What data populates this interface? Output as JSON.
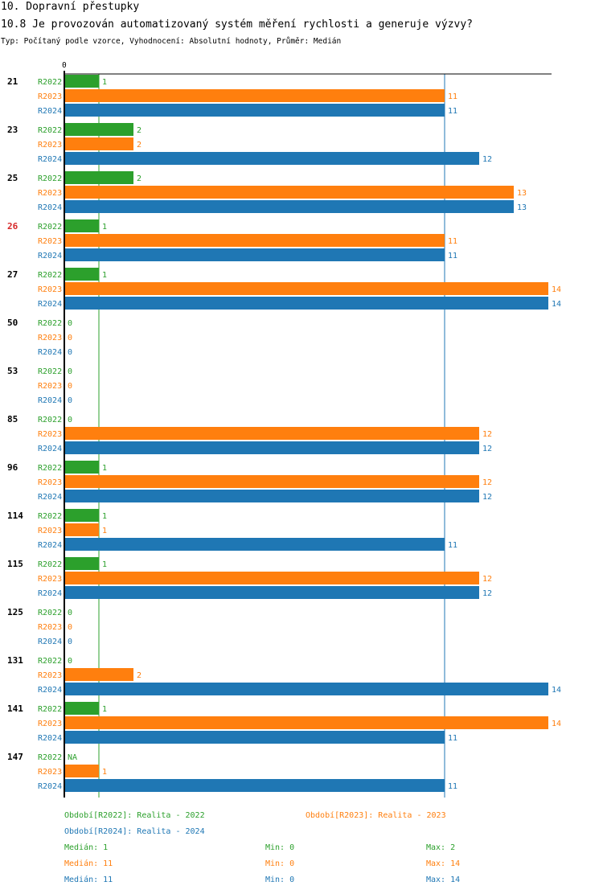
{
  "header": {
    "title": "10. Dopravní přestupky",
    "subtitle": "10.8 Je provozován automatizovaný systém měření rychlosti a generuje výzvy?",
    "meta": "Typ: Počítaný podle vzorce, Vyhodnocení: Absolutní hodnoty, Průměr: Medián"
  },
  "colors": {
    "R2022": "#2ca02c",
    "R2023": "#ff7f0e",
    "R2024": "#1f77b4",
    "highlight": "#d62728",
    "axis": "#000000"
  },
  "chart_data": {
    "type": "bar",
    "orientation": "horizontal",
    "title": "10.8 Je provozován automatizovaný systém měření rychlosti a generuje výzvy?",
    "axis_zero_label": "0",
    "xlim": [
      0,
      14
    ],
    "categories": [
      "21",
      "23",
      "25",
      "26",
      "27",
      "50",
      "53",
      "85",
      "96",
      "114",
      "115",
      "125",
      "131",
      "141",
      "147"
    ],
    "highlight_category": "26",
    "series": [
      {
        "name": "R2022",
        "values": [
          1,
          2,
          2,
          1,
          1,
          0,
          0,
          0,
          1,
          1,
          1,
          0,
          0,
          1,
          null
        ],
        "labels": [
          "1",
          "2",
          "2",
          "1",
          "1",
          "0",
          "0",
          "0",
          "1",
          "1",
          "1",
          "0",
          "0",
          "1",
          "NA"
        ]
      },
      {
        "name": "R2023",
        "values": [
          11,
          2,
          13,
          11,
          14,
          0,
          0,
          12,
          12,
          1,
          12,
          0,
          2,
          14,
          1
        ],
        "labels": [
          "11",
          "2",
          "13",
          "11",
          "14",
          "0",
          "0",
          "12",
          "12",
          "1",
          "12",
          "0",
          "2",
          "14",
          "1"
        ]
      },
      {
        "name": "R2024",
        "values": [
          11,
          12,
          13,
          11,
          14,
          0,
          0,
          12,
          12,
          11,
          12,
          0,
          14,
          11,
          11
        ],
        "labels": [
          "11",
          "12",
          "13",
          "11",
          "14",
          "0",
          "0",
          "12",
          "12",
          "11",
          "12",
          "0",
          "14",
          "11",
          "11"
        ]
      }
    ],
    "reference_lines": [
      {
        "series": "R2022",
        "value": 1
      },
      {
        "series": "R2024",
        "value": 11
      }
    ]
  },
  "legend": {
    "items": [
      {
        "series": "R2022",
        "text": "Období[R2022]: Realita - 2022"
      },
      {
        "series": "R2023",
        "text": "Období[R2023]: Realita - 2023"
      },
      {
        "series": "R2024",
        "text": "Období[R2024]: Realita - 2024"
      }
    ],
    "stats": [
      {
        "series": "R2022",
        "median": "Medián: 1",
        "min": "Min: 0",
        "max": "Max: 2"
      },
      {
        "series": "R2023",
        "median": "Medián: 11",
        "min": "Min: 0",
        "max": "Max: 14"
      },
      {
        "series": "R2024",
        "median": "Medián: 11",
        "min": "Min: 0",
        "max": "Max: 14"
      }
    ]
  }
}
